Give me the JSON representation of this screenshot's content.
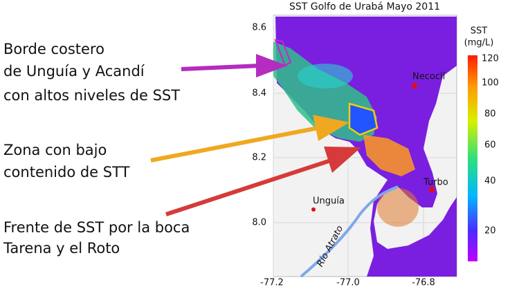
{
  "title": "SST Golfo de Urabá Mayo 2011",
  "annotations": [
    {
      "lines": [
        "Borde costero",
        "de Unguía y Acandí",
        "con altos niveles de SST"
      ]
    },
    {
      "lines": [
        "Zona con bajo",
        "contenido de STT"
      ]
    },
    {
      "lines": [
        "Frente de SST por la boca",
        "Tarena y el Roto"
      ]
    }
  ],
  "axes": {
    "x_ticks": [
      "-77.2",
      "-77.0",
      "-76.8"
    ],
    "y_ticks": [
      "8.6",
      "8.4",
      "8.2",
      "8.0"
    ]
  },
  "colorbar": {
    "title": [
      "SST",
      "(mg/L)"
    ],
    "ticks": [
      "120",
      "100",
      "80",
      "60",
      "40",
      "20"
    ]
  },
  "places": [
    "Necoclí",
    "Turbo",
    "Unguía",
    "Río Atrato"
  ]
}
